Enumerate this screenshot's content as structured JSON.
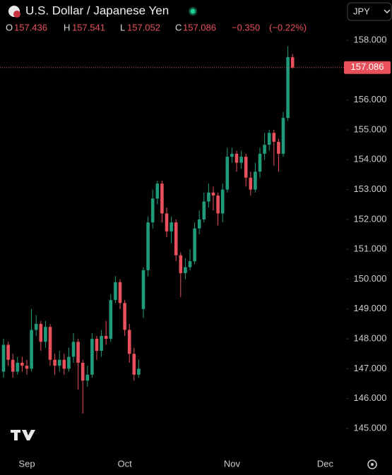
{
  "chart_data": {
    "type": "candlestick",
    "title": "U.S. Dollar / Japanese Yen",
    "currency": "JPY",
    "ohlc_labels": {
      "open": "O",
      "high": "H",
      "low": "L",
      "close": "C"
    },
    "change": "−0.350",
    "change_pct": "(−0.22%)",
    "up_color": "#1f9b7a",
    "down_color": "#e8505b",
    "categories": [
      null,
      null,
      null,
      null,
      null,
      "Sep",
      null,
      null,
      null,
      null,
      null,
      null,
      null,
      null,
      null,
      null,
      null,
      null,
      null,
      null,
      null,
      null,
      null,
      null,
      null,
      null,
      "Oct",
      null,
      null,
      null,
      null,
      null,
      null,
      null,
      null,
      null,
      null,
      null,
      null,
      null,
      null,
      null,
      null,
      null,
      null,
      null,
      null,
      null,
      null,
      "Nov",
      null,
      null,
      null,
      null,
      null,
      null,
      null,
      null,
      null,
      null,
      null,
      null,
      null,
      null,
      null,
      null,
      null,
      null,
      null,
      "Dec"
    ],
    "open": [
      146.9,
      147.8,
      147.3,
      146.9,
      147.2,
      147.1,
      147.0,
      148.3,
      148.5,
      147.9,
      148.4,
      147.3,
      147.1,
      147.3,
      147.0,
      147.4,
      147.9,
      147.2,
      146.6,
      146.8,
      148.0,
      147.6,
      148.1,
      148.0,
      149.3,
      149.9,
      149.2,
      148.3,
      147.5,
      146.8,
      149.0,
      150.3,
      151.9,
      152.7,
      153.2,
      152.2,
      151.6,
      151.9,
      150.8,
      150.2,
      150.4,
      150.6,
      151.7,
      152.0,
      152.6,
      152.9,
      152.8,
      152.2,
      153.0,
      154.1,
      154.2,
      153.9,
      154.1,
      153.4,
      153.0,
      153.6,
      154.2,
      154.5,
      154.9,
      154.6,
      154.2,
      155.4,
      157.436,
      null,
      null,
      null,
      null,
      null,
      null,
      null
    ],
    "high": [
      148.0,
      147.9,
      147.5,
      147.4,
      147.4,
      147.3,
      149.0,
      148.8,
      148.6,
      148.6,
      148.5,
      147.5,
      147.6,
      147.5,
      147.7,
      148.2,
      148.0,
      147.3,
      147.1,
      148.2,
      148.1,
      148.3,
      148.6,
      149.5,
      150.1,
      150.0,
      149.3,
      148.5,
      147.7,
      147.3,
      150.4,
      152.1,
      153.0,
      153.3,
      153.3,
      152.4,
      152.1,
      152.0,
      150.9,
      150.7,
      151.0,
      151.9,
      152.3,
      152.9,
      153.2,
      153.1,
      152.9,
      153.2,
      154.4,
      154.4,
      154.3,
      154.3,
      154.2,
      153.6,
      153.9,
      154.4,
      154.9,
      155.0,
      155.0,
      154.7,
      155.6,
      157.8,
      157.541,
      null,
      null,
      null,
      null,
      null,
      null,
      null
    ],
    "low": [
      146.7,
      147.1,
      146.7,
      146.8,
      146.9,
      146.8,
      146.9,
      148.1,
      147.6,
      147.7,
      147.1,
      146.8,
      146.9,
      146.8,
      146.9,
      147.2,
      146.3,
      145.5,
      146.4,
      146.7,
      147.3,
      147.4,
      147.8,
      147.9,
      149.2,
      149.0,
      148.1,
      147.2,
      146.6,
      146.7,
      148.7,
      150.1,
      151.7,
      152.5,
      151.9,
      151.4,
      151.2,
      150.6,
      149.4,
      150.0,
      150.3,
      150.5,
      151.5,
      151.9,
      152.4,
      152.3,
      151.8,
      151.9,
      152.9,
      153.9,
      153.6,
      153.7,
      153.1,
      152.8,
      152.9,
      153.4,
      154.0,
      154.3,
      153.8,
      153.6,
      154.1,
      155.3,
      157.052,
      null,
      null,
      null,
      null,
      null,
      null,
      null
    ],
    "close": [
      147.8,
      147.3,
      146.9,
      147.2,
      147.1,
      147.0,
      148.3,
      148.5,
      147.9,
      148.4,
      147.3,
      147.1,
      147.3,
      147.0,
      147.4,
      147.9,
      147.2,
      146.6,
      146.8,
      148.0,
      147.6,
      148.1,
      148.0,
      149.3,
      149.9,
      149.2,
      148.3,
      147.5,
      146.8,
      147.0,
      150.3,
      151.9,
      152.7,
      153.2,
      152.2,
      151.6,
      151.9,
      150.8,
      150.2,
      150.4,
      150.6,
      151.7,
      152.0,
      152.6,
      152.9,
      152.8,
      152.2,
      153.0,
      154.1,
      154.2,
      153.9,
      154.1,
      153.4,
      153.0,
      153.6,
      154.2,
      154.5,
      154.9,
      154.6,
      154.2,
      155.4,
      157.436,
      157.086,
      null,
      null,
      null,
      null,
      null,
      null,
      null
    ],
    "ylim": [
      144.22,
      159.35
    ],
    "yticks": [
      {
        "value": 145,
        "label": "145.000"
      },
      {
        "value": 146,
        "label": "146.000"
      },
      {
        "value": 147,
        "label": "147.000"
      },
      {
        "value": 148,
        "label": "148.000"
      },
      {
        "value": 149,
        "label": "149.000"
      },
      {
        "value": 150,
        "label": "150.000"
      },
      {
        "value": 151,
        "label": "151.000"
      },
      {
        "value": 152,
        "label": "152.000"
      },
      {
        "value": 153,
        "label": "153.000"
      },
      {
        "value": 154,
        "label": "154.000"
      },
      {
        "value": 155,
        "label": "155.000"
      },
      {
        "value": 156,
        "label": "156.000"
      },
      {
        "value": 157,
        "label": "157.000"
      },
      {
        "value": 158,
        "label": "158.000"
      }
    ]
  }
}
